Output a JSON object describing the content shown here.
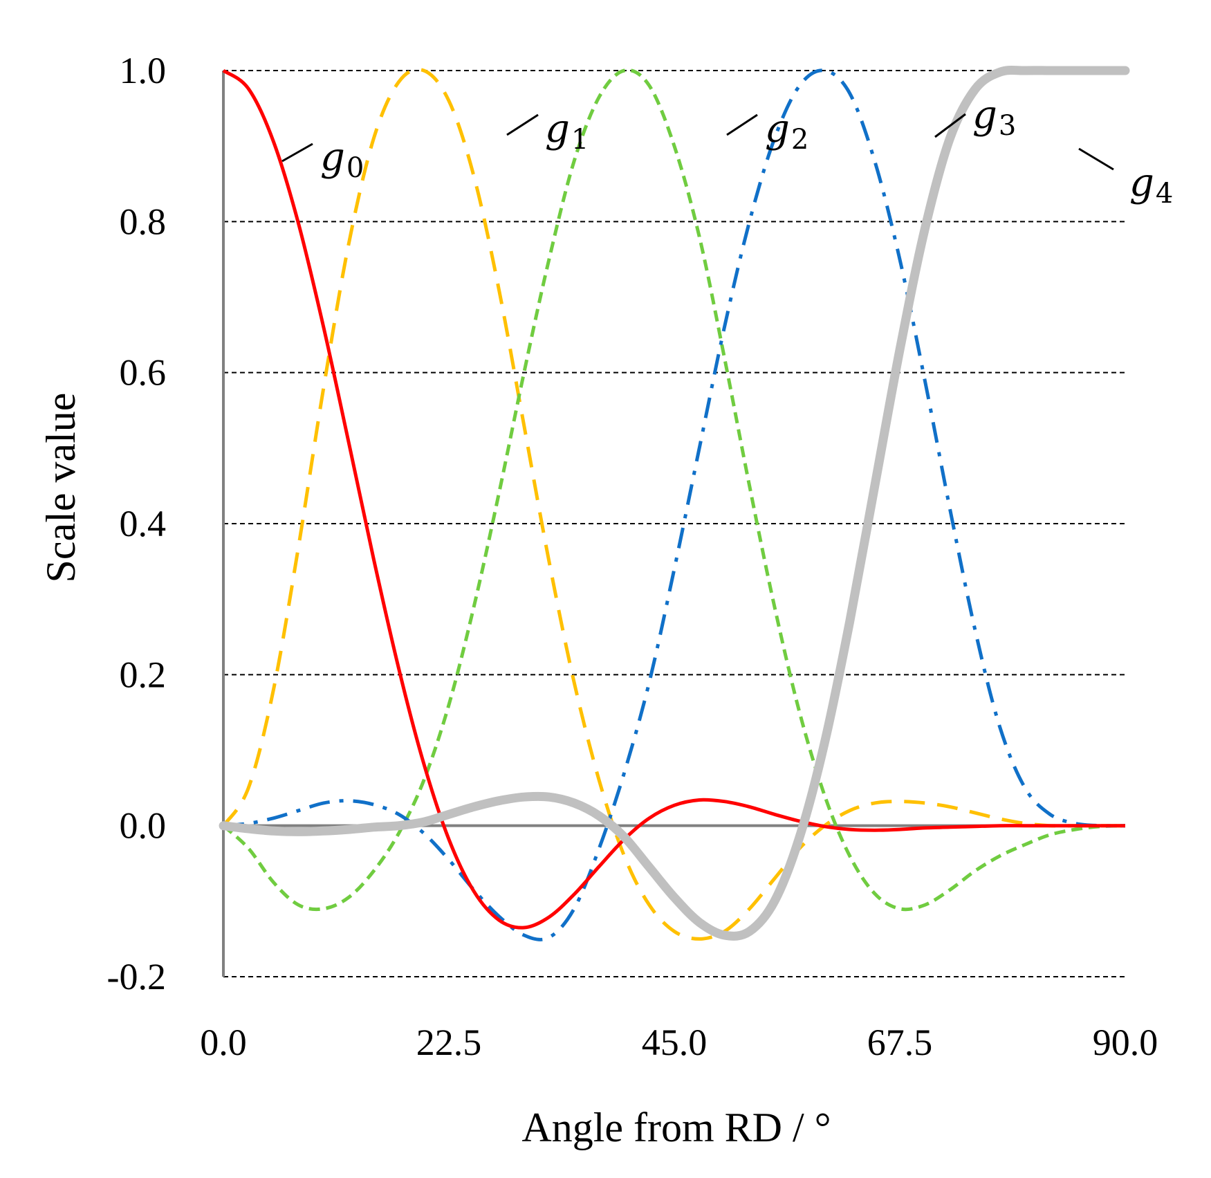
{
  "chart_data": {
    "type": "line",
    "title": "",
    "xlabel": "Angle from RD / °",
    "ylabel": "Scale value",
    "xlim": [
      0,
      90
    ],
    "ylim": [
      -0.2,
      1.0
    ],
    "x_ticks": [
      "0.0",
      "22.5",
      "45.0",
      "67.5",
      "90.0"
    ],
    "y_ticks": [
      "-0.2",
      "0.0",
      "0.2",
      "0.4",
      "0.6",
      "0.8",
      "1.0"
    ],
    "grid": "horizontal-dashed",
    "series": [
      {
        "name": "g0",
        "base": "g",
        "sub": "0",
        "color": "#ff0000",
        "style": "solid",
        "x": [
          0,
          2.5,
          5,
          7.5,
          10,
          12.5,
          15,
          17.5,
          20,
          22.5,
          25,
          27.5,
          30,
          32.5,
          35,
          37.5,
          40,
          42.5,
          45,
          47.5,
          50,
          52.5,
          55,
          57.5,
          60,
          62.5,
          65,
          67.5,
          70,
          72.5,
          75,
          77.5,
          80,
          82.5,
          85,
          87.5,
          90
        ],
        "values": [
          1.0,
          0.976,
          0.906,
          0.797,
          0.66,
          0.508,
          0.353,
          0.208,
          0.082,
          -0.018,
          -0.087,
          -0.125,
          -0.135,
          -0.121,
          -0.091,
          -0.054,
          -0.018,
          0.01,
          0.027,
          0.034,
          0.032,
          0.025,
          0.015,
          0.006,
          -0.001,
          -0.005,
          -0.006,
          -0.005,
          -0.003,
          -0.002,
          -0.001,
          0.0,
          0.0,
          0.0,
          0.0,
          0.0,
          0.0
        ]
      },
      {
        "name": "g1",
        "base": "g",
        "sub": "1",
        "color": "#ffc000",
        "style": "dash",
        "x": [
          0,
          2.5,
          5,
          7.5,
          10,
          12.5,
          15,
          17.5,
          20,
          22.5,
          25,
          27.5,
          30,
          32.5,
          35,
          37.5,
          40,
          42.5,
          45,
          47.5,
          50,
          52.5,
          55,
          57.5,
          60,
          62.5,
          65,
          67.5,
          70,
          72.5,
          75,
          77.5,
          80,
          82.5,
          85,
          87.5,
          90
        ],
        "values": [
          0.0,
          0.05,
          0.18,
          0.37,
          0.58,
          0.77,
          0.91,
          0.985,
          1.0,
          0.96,
          0.86,
          0.71,
          0.53,
          0.35,
          0.19,
          0.06,
          -0.04,
          -0.105,
          -0.14,
          -0.15,
          -0.14,
          -0.11,
          -0.07,
          -0.03,
          0.0,
          0.02,
          0.03,
          0.032,
          0.03,
          0.025,
          0.017,
          0.009,
          0.003,
          0.0,
          0.0,
          0.0,
          0.0
        ]
      },
      {
        "name": "g2",
        "base": "g",
        "sub": "2",
        "color": "#70cc40",
        "style": "short-dash",
        "x": [
          0,
          2.5,
          5,
          7.5,
          10,
          12.5,
          15,
          17.5,
          20,
          22.5,
          25,
          27.5,
          30,
          32.5,
          35,
          37.5,
          40,
          42.5,
          45,
          47.5,
          50,
          52.5,
          55,
          57.5,
          60,
          62.5,
          65,
          67.5,
          70,
          72.5,
          75,
          77.5,
          80,
          82.5,
          85,
          87.5,
          90
        ],
        "values": [
          0.0,
          -0.03,
          -0.075,
          -0.105,
          -0.11,
          -0.095,
          -0.06,
          -0.01,
          0.06,
          0.16,
          0.29,
          0.44,
          0.6,
          0.75,
          0.88,
          0.965,
          1.0,
          0.98,
          0.9,
          0.78,
          0.62,
          0.45,
          0.29,
          0.15,
          0.04,
          -0.04,
          -0.09,
          -0.11,
          -0.105,
          -0.085,
          -0.06,
          -0.04,
          -0.025,
          -0.012,
          -0.005,
          -0.001,
          0.0
        ]
      },
      {
        "name": "g3",
        "base": "g",
        "sub": "3",
        "color": "#1070c8",
        "style": "dash-dot",
        "x": [
          0,
          2.5,
          5,
          7.5,
          10,
          12.5,
          15,
          17.5,
          20,
          22.5,
          25,
          27.5,
          30,
          32.5,
          35,
          37.5,
          40,
          42.5,
          45,
          47.5,
          50,
          52.5,
          55,
          57.5,
          60,
          62.5,
          65,
          67.5,
          70,
          72.5,
          75,
          77.5,
          80,
          82.5,
          85,
          87.5,
          90
        ],
        "values": [
          0.0,
          0.003,
          0.01,
          0.02,
          0.03,
          0.033,
          0.028,
          0.015,
          -0.01,
          -0.045,
          -0.085,
          -0.12,
          -0.145,
          -0.148,
          -0.11,
          -0.03,
          0.07,
          0.19,
          0.34,
          0.5,
          0.66,
          0.8,
          0.91,
          0.98,
          1.0,
          0.97,
          0.88,
          0.75,
          0.59,
          0.42,
          0.26,
          0.13,
          0.05,
          0.015,
          0.003,
          0.0,
          0.0
        ]
      },
      {
        "name": "g4",
        "base": "g",
        "sub": "4",
        "color": "#c0c0c0",
        "style": "thick",
        "x": [
          0,
          2.5,
          5,
          7.5,
          10,
          12.5,
          15,
          17.5,
          20,
          22.5,
          25,
          27.5,
          30,
          32.5,
          35,
          37.5,
          40,
          42.5,
          45,
          47.5,
          50,
          52.5,
          55,
          57.5,
          60,
          62.5,
          65,
          67.5,
          70,
          72.5,
          75,
          77.5,
          80,
          82.5,
          85,
          87.5,
          90
        ],
        "values": [
          0.0,
          -0.004,
          -0.007,
          -0.008,
          -0.007,
          -0.005,
          -0.002,
          0.0,
          0.005,
          0.015,
          0.025,
          0.033,
          0.038,
          0.038,
          0.03,
          0.013,
          -0.015,
          -0.055,
          -0.095,
          -0.128,
          -0.145,
          -0.14,
          -0.1,
          -0.015,
          0.11,
          0.27,
          0.45,
          0.63,
          0.79,
          0.91,
          0.975,
          0.998,
          1.0,
          1.0,
          1.0,
          1.0,
          1.0
        ]
      }
    ]
  }
}
